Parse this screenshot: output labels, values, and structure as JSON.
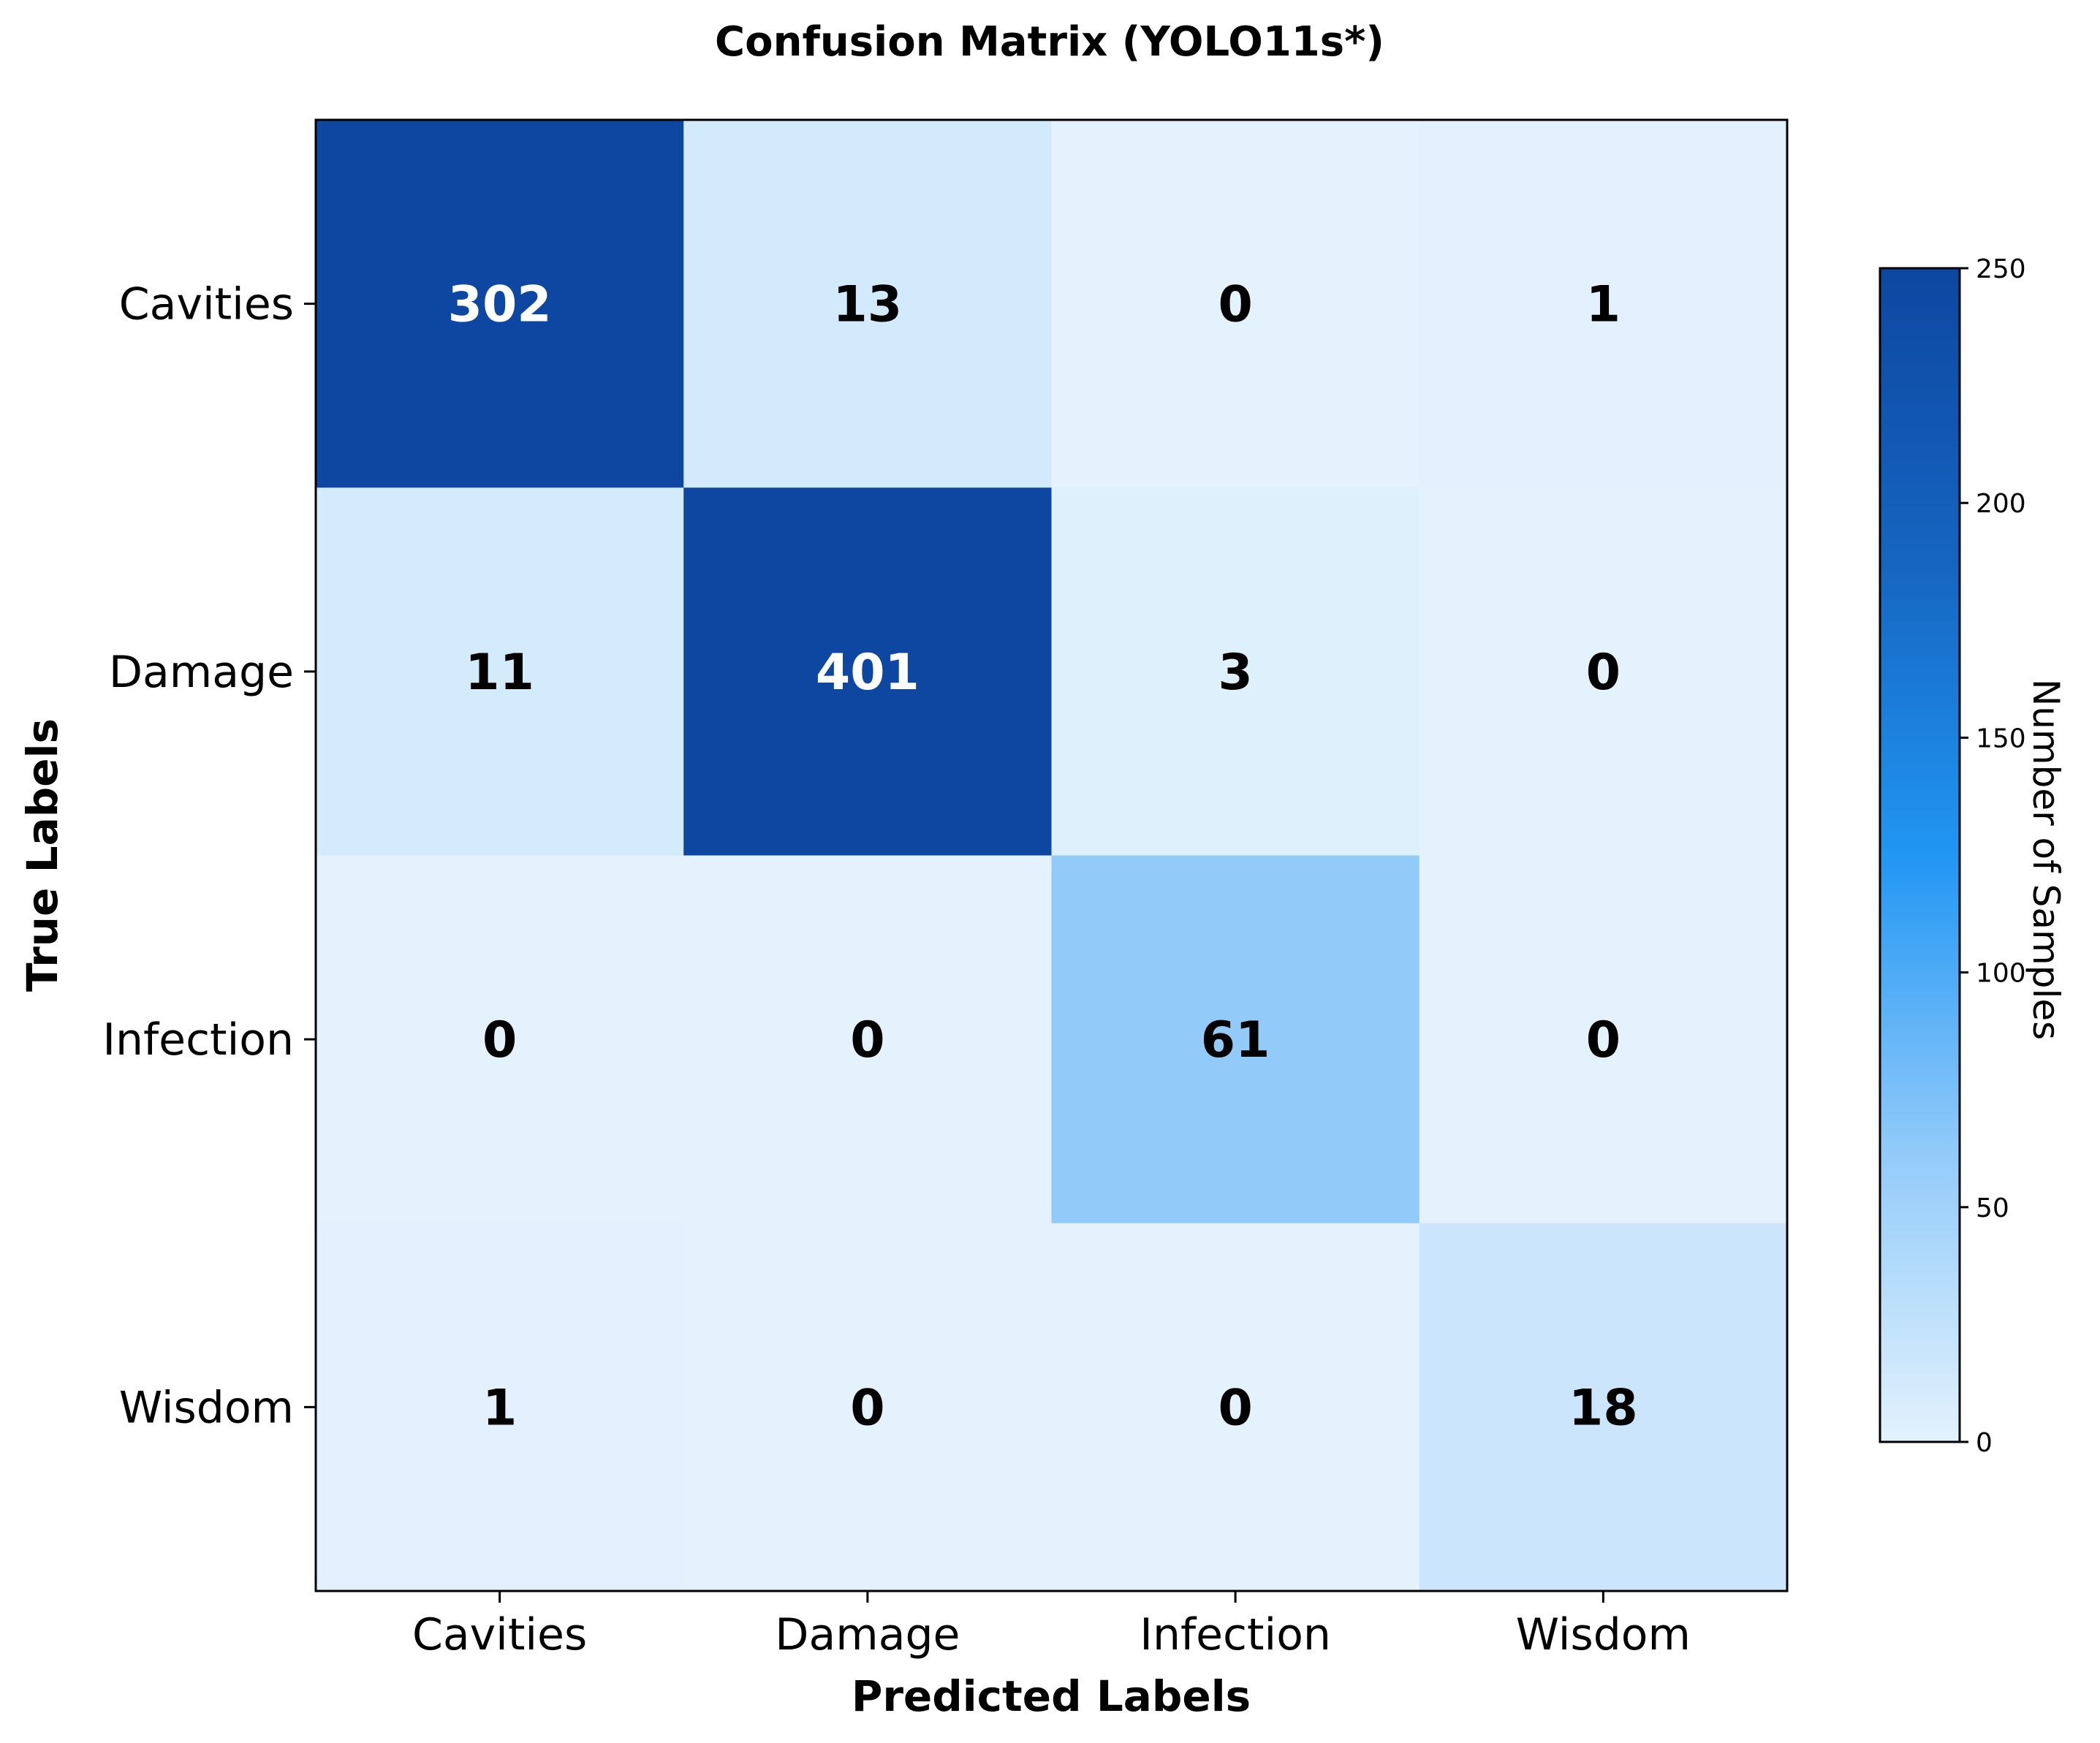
{
  "chart_data": {
    "type": "heatmap",
    "title": "Confusion Matrix (YOLO11s*)",
    "xlabel": "Predicted Labels",
    "ylabel": "True Labels",
    "x_categories": [
      "Cavities",
      "Damage",
      "Infection",
      "Wisdom"
    ],
    "y_categories": [
      "Cavities",
      "Damage",
      "Infection",
      "Wisdom"
    ],
    "values": [
      [
        302,
        13,
        0,
        1
      ],
      [
        11,
        401,
        3,
        0
      ],
      [
        0,
        0,
        61,
        0
      ],
      [
        1,
        0,
        0,
        18
      ]
    ],
    "colorbar": {
      "label": "Number of Samples",
      "range": [
        0,
        250
      ],
      "ticks": [
        0,
        50,
        100,
        150,
        200,
        250
      ]
    },
    "colormap": [
      "#e3f2fd",
      "#90caf9",
      "#2196f3",
      "#1565c0",
      "#0d47a1"
    ]
  }
}
